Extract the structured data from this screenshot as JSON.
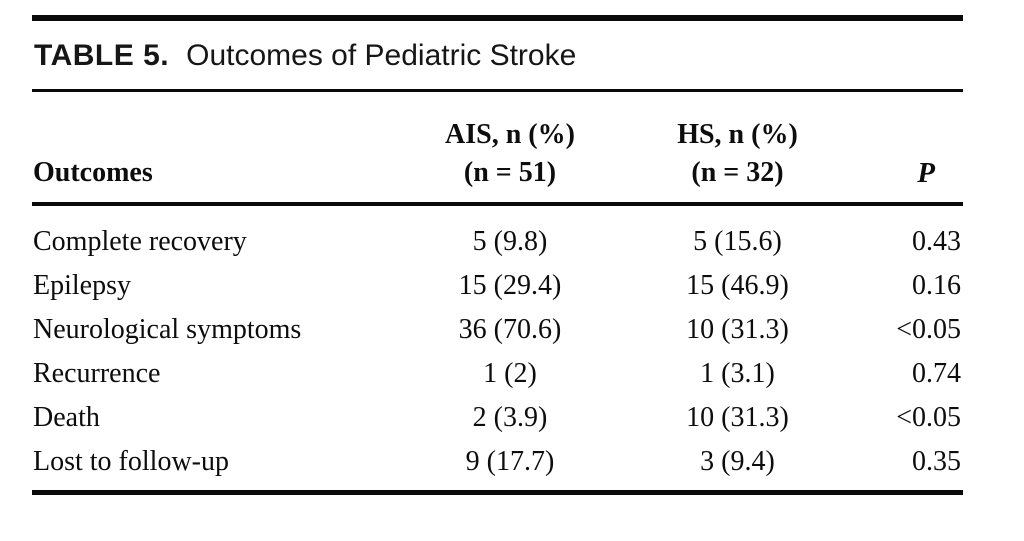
{
  "figure": {
    "title": {
      "label": "TABLE 5.",
      "text": "Outcomes of Pediatric Stroke"
    },
    "table": {
      "headers": {
        "outcomes": "Outcomes",
        "ais_line1": "AIS, n (%)",
        "ais_line2": "(n = 51)",
        "hs_line1": "HS, n (%)",
        "hs_line2": "(n = 32)",
        "p": "P"
      },
      "rows": [
        {
          "outcome": "Complete recovery",
          "ais": "5 (9.8)",
          "hs": "5 (15.6)",
          "p": "0.43"
        },
        {
          "outcome": "Epilepsy",
          "ais": "15 (29.4)",
          "hs": "15 (46.9)",
          "p": "0.16"
        },
        {
          "outcome": "Neurological symptoms",
          "ais": "36 (70.6)",
          "hs": "10 (31.3)",
          "p": "<0.05"
        },
        {
          "outcome": "Recurrence",
          "ais": "1 (2)",
          "hs": "1 (3.1)",
          "p": "0.74"
        },
        {
          "outcome": "Death",
          "ais": "2 (3.9)",
          "hs": "10 (31.3)",
          "p": "<0.05"
        },
        {
          "outcome": "Lost to follow-up",
          "ais": "9 (17.7)",
          "hs": "3 (9.4)",
          "p": "0.35"
        }
      ]
    },
    "colors": {
      "rule": "#0a0a0a",
      "text": "#0d0d0d",
      "background": "#ffffff"
    }
  }
}
